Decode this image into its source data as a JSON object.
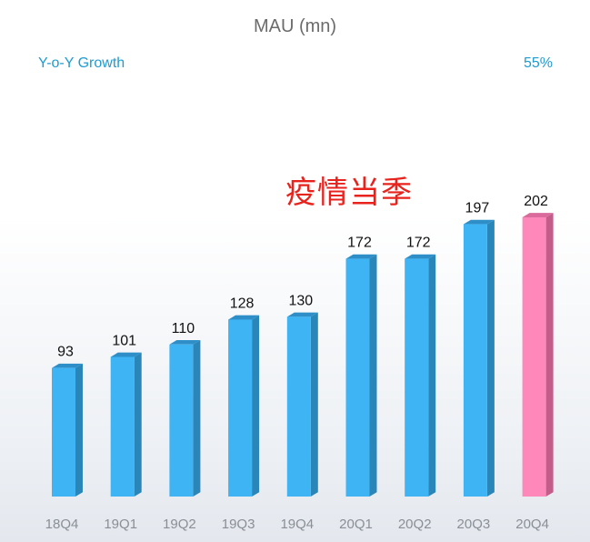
{
  "chart_data": {
    "type": "bar",
    "title": "MAU (mn)",
    "categories": [
      "18Q4",
      "19Q1",
      "19Q2",
      "19Q3",
      "19Q4",
      "20Q1",
      "20Q2",
      "20Q3",
      "20Q4"
    ],
    "values": [
      93,
      101,
      110,
      128,
      130,
      172,
      172,
      197,
      202
    ],
    "highlight_index": 8,
    "colors": {
      "bar": "#3fb4f5",
      "bar_side": "#2a86b8",
      "bar_top": "#2e8fc8",
      "highlight": "#ff88bb",
      "highlight_side": "#c45c8a",
      "highlight_top": "#d96a9b"
    },
    "annotation": "疫情当季",
    "annotation_color": "#e8221c"
  },
  "growth": {
    "label": "Y-o-Y Growth",
    "value": "55%"
  }
}
